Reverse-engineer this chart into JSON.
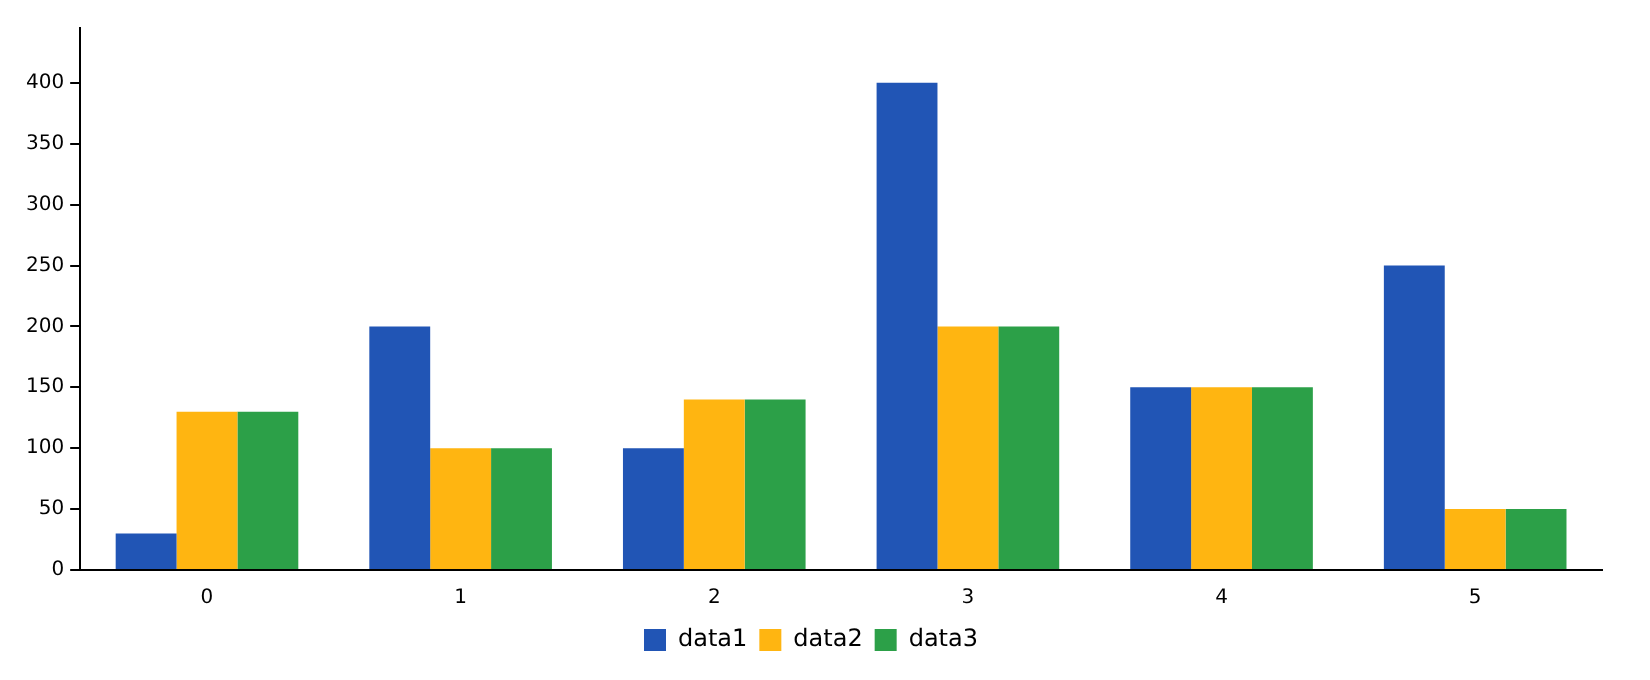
{
  "chart_data": {
    "type": "bar",
    "categories": [
      "0",
      "1",
      "2",
      "3",
      "4",
      "5"
    ],
    "series": [
      {
        "name": "data1",
        "color": "#2155b5",
        "values": [
          30,
          200,
          100,
          400,
          150,
          250
        ]
      },
      {
        "name": "data2",
        "color": "#ffb511",
        "values": [
          130,
          100,
          140,
          200,
          150,
          50
        ]
      },
      {
        "name": "data3",
        "color": "#2ca048",
        "values": [
          130,
          100,
          140,
          200,
          150,
          50
        ]
      }
    ],
    "ylim": [
      0,
      445
    ],
    "yticks": [
      0,
      50,
      100,
      150,
      200,
      250,
      300,
      350,
      400
    ],
    "grid": false,
    "legend": "bottom"
  }
}
